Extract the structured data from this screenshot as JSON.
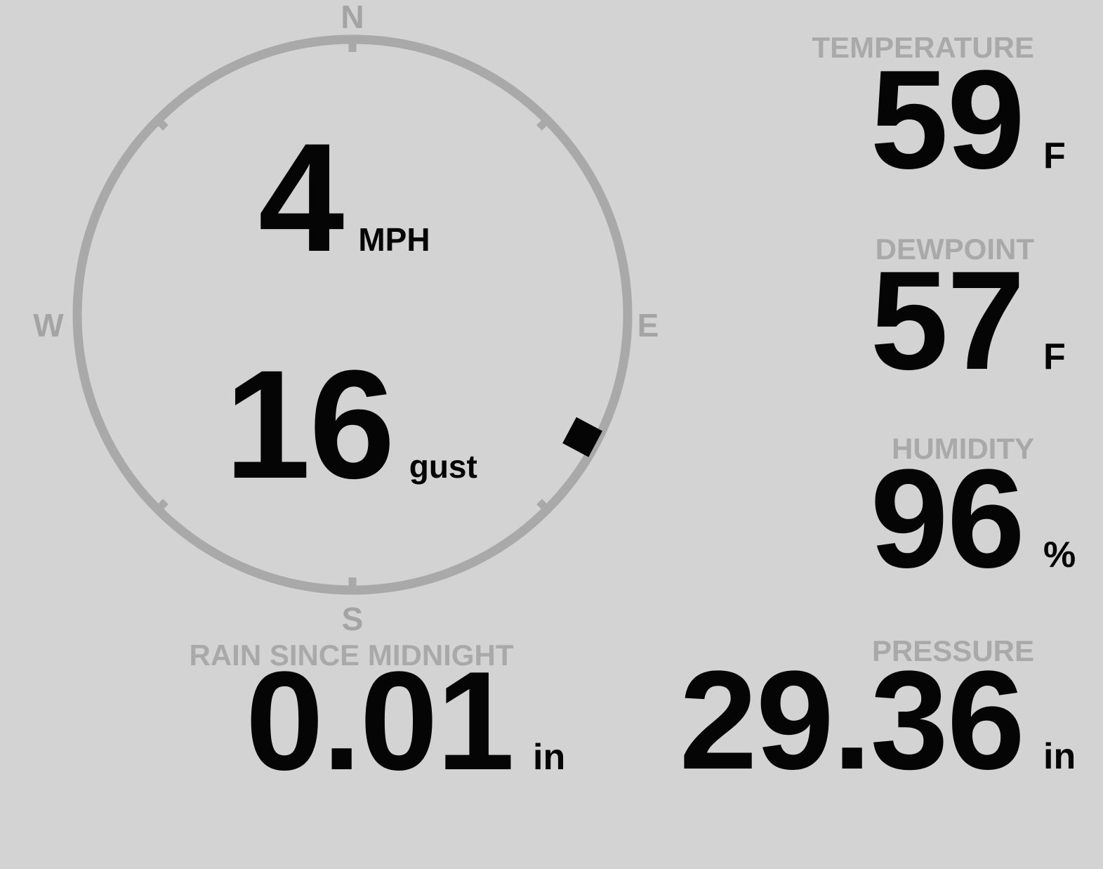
{
  "colors": {
    "background": "#d3d3d3",
    "ring_gray": "#a9a9a9",
    "label_gray": "#a9a9a9",
    "value_black": "#050505"
  },
  "compass": {
    "labels": {
      "north": "N",
      "east": "E",
      "south": "S",
      "west": "W"
    }
  },
  "wind": {
    "speed": "4",
    "speed_unit": "MPH",
    "gust": "16",
    "gust_label": "gust",
    "direction_degrees": 118
  },
  "metrics": {
    "temperature": {
      "label": "TEMPERATURE",
      "value": "59",
      "unit": "F"
    },
    "dewpoint": {
      "label": "DEWPOINT",
      "value": "57",
      "unit": "F"
    },
    "humidity": {
      "label": "HUMIDITY",
      "value": "96",
      "unit": "%"
    },
    "pressure": {
      "label": "PRESSURE",
      "value": "29.36",
      "unit": "in"
    },
    "rain": {
      "label": "RAIN SINCE MIDNIGHT",
      "value": "0.01",
      "unit": "in"
    }
  }
}
